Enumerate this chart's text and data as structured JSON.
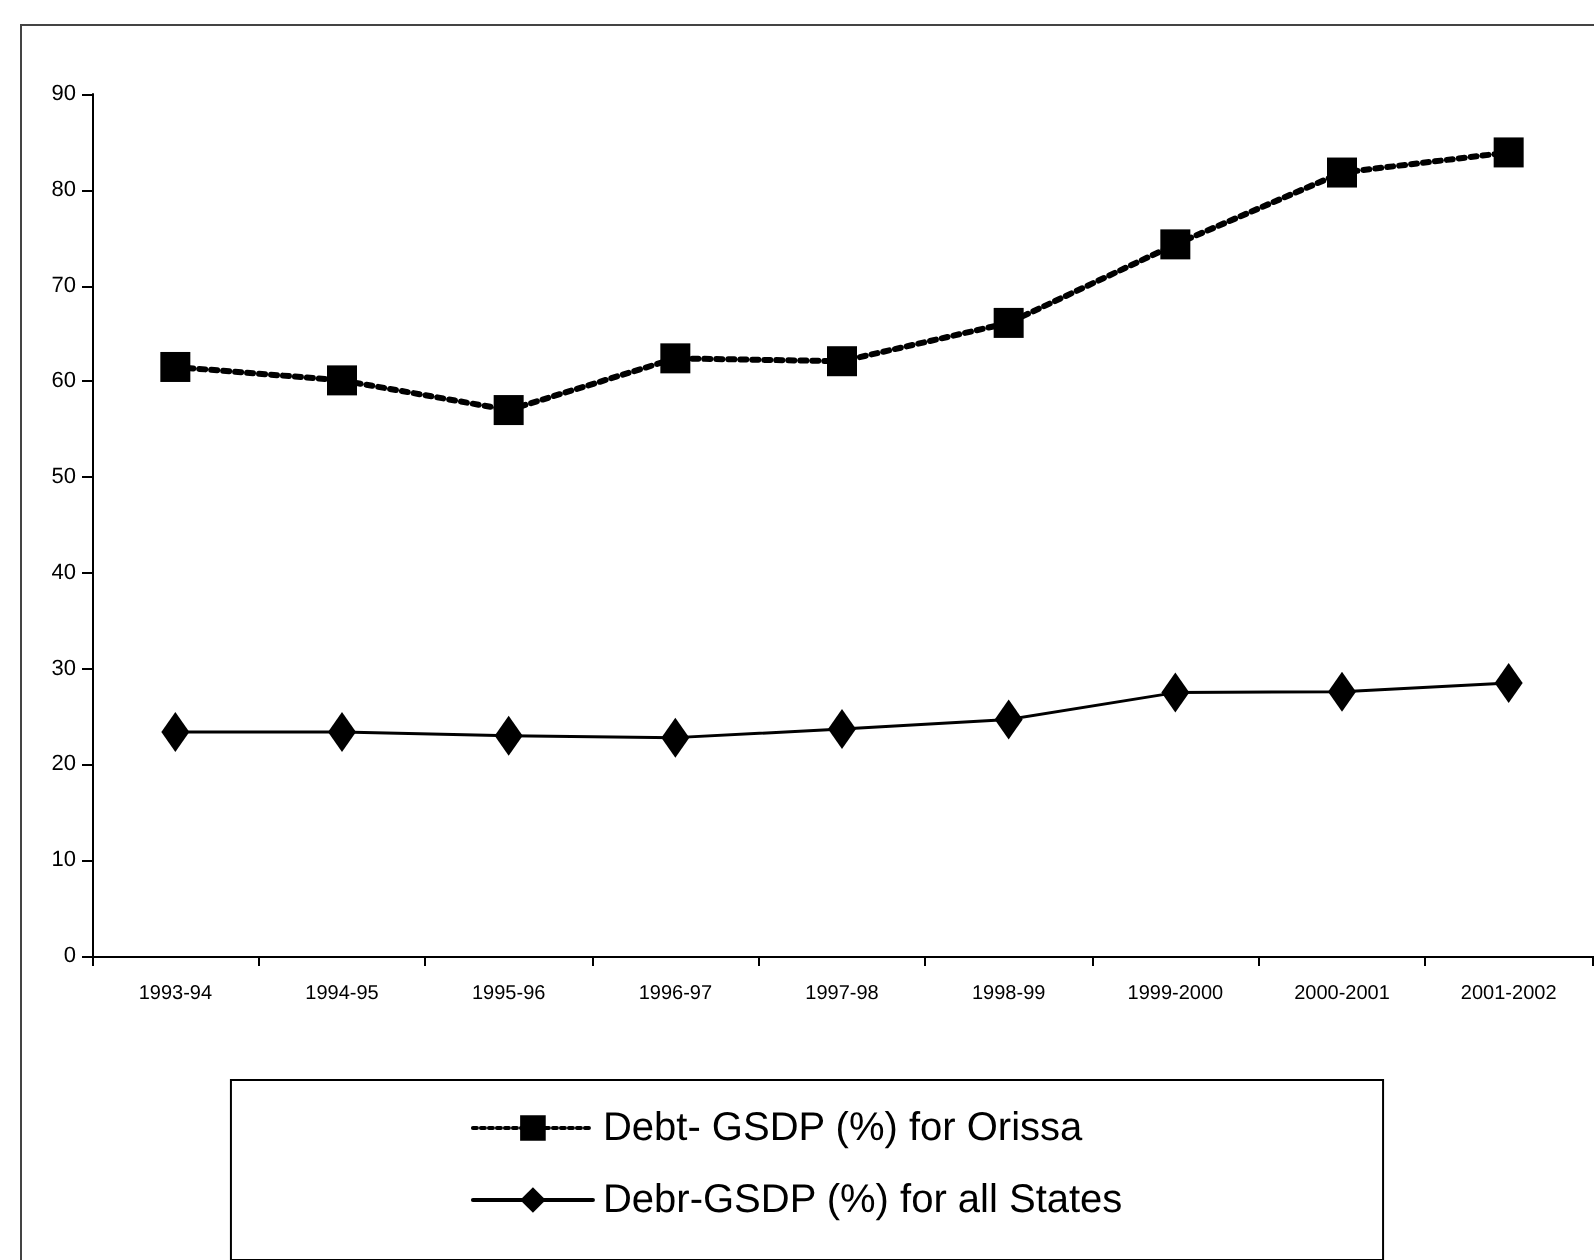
{
  "chart_data": {
    "type": "line",
    "categories": [
      "1993-94",
      "1994-95",
      "1995-96",
      "1996-97",
      "1997-98",
      "1998-99",
      "1999-2000",
      "2000-2001",
      "2001-2002"
    ],
    "series": [
      {
        "name": "Debt- GSDP (%) for Orissa",
        "color": "#000000",
        "marker": "square",
        "line_style": "dotted",
        "values": [
          61.5,
          60.1,
          57.0,
          62.4,
          62.1,
          66.1,
          74.3,
          81.8,
          83.9
        ]
      },
      {
        "name": "Debr-GSDP (%) for all States",
        "color": "#000000",
        "marker": "diamond",
        "line_style": "solid",
        "values": [
          23.4,
          23.4,
          23.0,
          22.8,
          23.7,
          24.7,
          27.5,
          27.6,
          28.5
        ]
      }
    ],
    "ylim": [
      0,
      90
    ],
    "yticks": [
      0,
      10,
      20,
      30,
      40,
      50,
      60,
      70,
      80,
      90
    ],
    "grid": false,
    "legend": "bottom"
  }
}
